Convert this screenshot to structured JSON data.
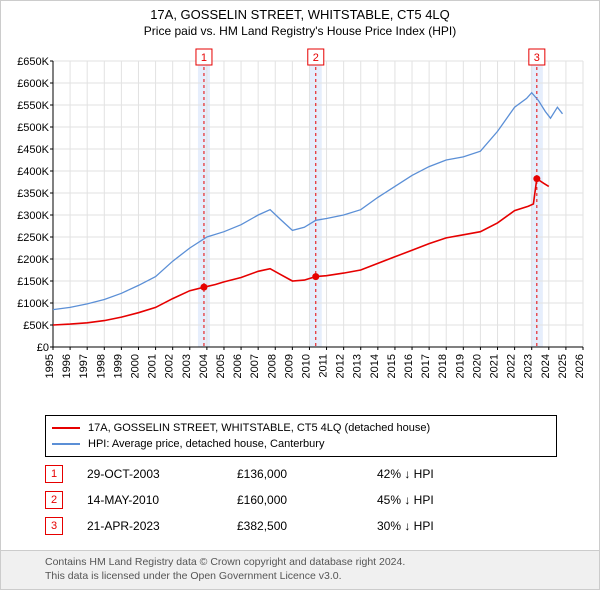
{
  "title": "17A, GOSSELIN STREET, WHITSTABLE, CT5 4LQ",
  "subtitle": "Price paid vs. HM Land Registry's House Price Index (HPI)",
  "chart": {
    "type": "line",
    "background_color": "#ffffff",
    "grid_color": "#e2e2e2",
    "axis_color": "#000000",
    "tick_fontsize": 11,
    "x": {
      "min": 1995,
      "max": 2026,
      "tick_step": 1,
      "labels": [
        "1995",
        "1996",
        "1997",
        "1998",
        "1999",
        "2000",
        "2001",
        "2002",
        "2003",
        "2004",
        "2005",
        "2006",
        "2007",
        "2008",
        "2009",
        "2010",
        "2011",
        "2012",
        "2013",
        "2014",
        "2015",
        "2016",
        "2017",
        "2018",
        "2019",
        "2020",
        "2021",
        "2022",
        "2023",
        "2024",
        "2025",
        "2026"
      ]
    },
    "y": {
      "min": 0,
      "max": 650000,
      "tick_step": 50000,
      "labels": [
        "£0",
        "£50K",
        "£100K",
        "£150K",
        "£200K",
        "£250K",
        "£300K",
        "£350K",
        "£400K",
        "£450K",
        "£500K",
        "£550K",
        "£600K",
        "£650K"
      ],
      "currency": "GBP"
    },
    "event_bands": [
      {
        "x": 2003.83,
        "label": "1",
        "band_color": "#e6eefc",
        "line_color": "#e60000",
        "dash": "3,3"
      },
      {
        "x": 2010.37,
        "label": "2",
        "band_color": "#e6eefc",
        "line_color": "#e60000",
        "dash": "3,3"
      },
      {
        "x": 2023.3,
        "label": "3",
        "band_color": "#e6eefc",
        "line_color": "#e60000",
        "dash": "3,3"
      }
    ],
    "series": [
      {
        "name": "price_paid",
        "label": "17A, GOSSELIN STREET, WHITSTABLE, CT5 4LQ (detached house)",
        "color": "#e60000",
        "line_width": 1.6,
        "points": [
          [
            1995.0,
            50000
          ],
          [
            1996.0,
            52000
          ],
          [
            1997.0,
            55000
          ],
          [
            1998.0,
            60000
          ],
          [
            1999.0,
            68000
          ],
          [
            2000.0,
            78000
          ],
          [
            2001.0,
            90000
          ],
          [
            2002.0,
            110000
          ],
          [
            2003.0,
            128000
          ],
          [
            2003.83,
            136000
          ],
          [
            2004.5,
            142000
          ],
          [
            2005.0,
            148000
          ],
          [
            2006.0,
            158000
          ],
          [
            2007.0,
            172000
          ],
          [
            2007.7,
            178000
          ],
          [
            2008.3,
            165000
          ],
          [
            2009.0,
            150000
          ],
          [
            2009.7,
            152000
          ],
          [
            2010.37,
            160000
          ],
          [
            2011.0,
            162000
          ],
          [
            2012.0,
            168000
          ],
          [
            2013.0,
            175000
          ],
          [
            2014.0,
            190000
          ],
          [
            2015.0,
            205000
          ],
          [
            2016.0,
            220000
          ],
          [
            2017.0,
            235000
          ],
          [
            2018.0,
            248000
          ],
          [
            2019.0,
            255000
          ],
          [
            2020.0,
            262000
          ],
          [
            2021.0,
            282000
          ],
          [
            2022.0,
            310000
          ],
          [
            2022.8,
            320000
          ],
          [
            2023.1,
            325000
          ],
          [
            2023.3,
            382500
          ],
          [
            2023.7,
            372000
          ],
          [
            2024.0,
            365000
          ]
        ],
        "sale_markers": [
          {
            "x": 2003.83,
            "y": 136000
          },
          {
            "x": 2010.37,
            "y": 160000
          },
          {
            "x": 2023.3,
            "y": 382500
          }
        ],
        "marker_radius": 3.5
      },
      {
        "name": "hpi",
        "label": "HPI: Average price, detached house, Canterbury",
        "color": "#5b8fd6",
        "line_width": 1.3,
        "points": [
          [
            1995.0,
            85000
          ],
          [
            1996.0,
            90000
          ],
          [
            1997.0,
            98000
          ],
          [
            1998.0,
            108000
          ],
          [
            1999.0,
            122000
          ],
          [
            2000.0,
            140000
          ],
          [
            2001.0,
            160000
          ],
          [
            2002.0,
            195000
          ],
          [
            2003.0,
            225000
          ],
          [
            2004.0,
            250000
          ],
          [
            2005.0,
            262000
          ],
          [
            2006.0,
            278000
          ],
          [
            2007.0,
            300000
          ],
          [
            2007.7,
            312000
          ],
          [
            2008.3,
            290000
          ],
          [
            2009.0,
            265000
          ],
          [
            2009.7,
            272000
          ],
          [
            2010.37,
            288000
          ],
          [
            2011.0,
            292000
          ],
          [
            2012.0,
            300000
          ],
          [
            2013.0,
            312000
          ],
          [
            2014.0,
            340000
          ],
          [
            2015.0,
            365000
          ],
          [
            2016.0,
            390000
          ],
          [
            2017.0,
            410000
          ],
          [
            2018.0,
            425000
          ],
          [
            2019.0,
            432000
          ],
          [
            2020.0,
            445000
          ],
          [
            2021.0,
            490000
          ],
          [
            2022.0,
            545000
          ],
          [
            2022.7,
            565000
          ],
          [
            2023.0,
            578000
          ],
          [
            2023.4,
            560000
          ],
          [
            2023.8,
            535000
          ],
          [
            2024.1,
            520000
          ],
          [
            2024.5,
            545000
          ],
          [
            2024.8,
            530000
          ]
        ]
      }
    ]
  },
  "legend": {
    "border_color": "#000000",
    "items": [
      {
        "color": "#e60000",
        "text": "17A, GOSSELIN STREET, WHITSTABLE, CT5 4LQ (detached house)"
      },
      {
        "color": "#5b8fd6",
        "text": "HPI: Average price, detached house, Canterbury"
      }
    ]
  },
  "sales": [
    {
      "n": "1",
      "date": "29-OCT-2003",
      "price": "£136,000",
      "diff_pct": "42%",
      "diff_dir": "down",
      "diff_vs": "HPI"
    },
    {
      "n": "2",
      "date": "14-MAY-2010",
      "price": "£160,000",
      "diff_pct": "45%",
      "diff_dir": "down",
      "diff_vs": "HPI"
    },
    {
      "n": "3",
      "date": "21-APR-2023",
      "price": "£382,500",
      "diff_pct": "30%",
      "diff_dir": "down",
      "diff_vs": "HPI"
    }
  ],
  "footer": {
    "line1": "Contains HM Land Registry data © Crown copyright and database right 2024.",
    "line2": "This data is licensed under the Open Government Licence v3.0.",
    "background_color": "#f0f0f0",
    "text_color": "#555555"
  }
}
